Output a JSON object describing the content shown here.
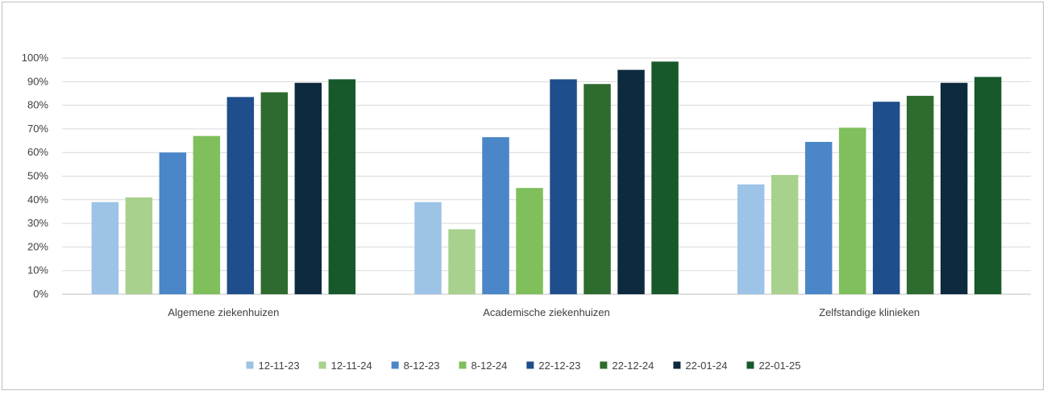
{
  "chart_data": {
    "type": "bar",
    "title": "",
    "xlabel": "",
    "ylabel": "",
    "ylim": [
      0,
      100
    ],
    "y_ticks": [
      "0%",
      "10%",
      "20%",
      "30%",
      "40%",
      "50%",
      "60%",
      "70%",
      "80%",
      "90%",
      "100%"
    ],
    "categories": [
      "Algemene ziekenhuizen",
      "Academische ziekenhuizen",
      "Zelfstandige klinieken"
    ],
    "grid": true,
    "legend_position": "bottom",
    "series": [
      {
        "name": "12-11-23",
        "color": "#9dc3e6",
        "values": [
          39,
          39,
          46.5
        ]
      },
      {
        "name": "12-11-24",
        "color": "#a9d18e",
        "values": [
          41,
          27.5,
          50.5
        ]
      },
      {
        "name": "8-12-23",
        "color": "#4a86c8",
        "values": [
          60,
          66.5,
          64.5
        ]
      },
      {
        "name": "8-12-24",
        "color": "#7fbf5c",
        "values": [
          67,
          45,
          70.5
        ]
      },
      {
        "name": "22-12-23",
        "color": "#1f4e8c",
        "values": [
          83.5,
          91,
          81.5
        ]
      },
      {
        "name": "22-12-24",
        "color": "#2e6b2e",
        "values": [
          85.5,
          89,
          84
        ]
      },
      {
        "name": "22-01-24",
        "color": "#0e2a3f",
        "values": [
          89.5,
          95,
          89.5
        ]
      },
      {
        "name": "22-01-25",
        "color": "#17592a",
        "values": [
          91,
          98.5,
          92
        ]
      }
    ]
  }
}
